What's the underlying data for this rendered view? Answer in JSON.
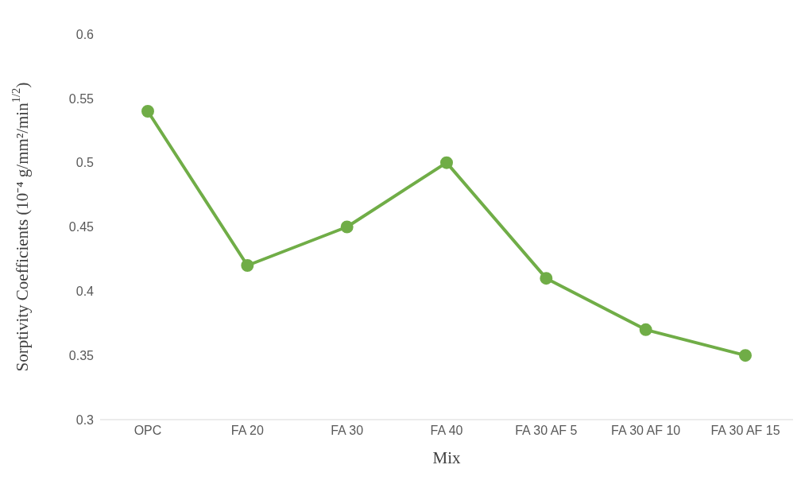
{
  "chart_data": {
    "type": "line",
    "xlabel": "Mix",
    "ylabel": "Sorptivity Coefficients (10⁻⁴ g/mm²/min$^{1/2}$)",
    "categories": [
      "OPC",
      "FA 20",
      "FA 30",
      "FA 40",
      "FA 30 AF 5",
      "FA 30 AF 10",
      "FA 30 AF 15"
    ],
    "series": [
      {
        "color": "#70ad47",
        "values": [
          0.54,
          0.42,
          0.45,
          0.5,
          0.41,
          0.37,
          0.35
        ]
      }
    ],
    "ylim": [
      0.3,
      0.6
    ],
    "yticks": [
      0.3,
      0.35,
      0.4,
      0.45,
      0.5,
      0.55,
      0.6
    ],
    "grid": false,
    "marker": "circle",
    "line_style": "solid"
  }
}
